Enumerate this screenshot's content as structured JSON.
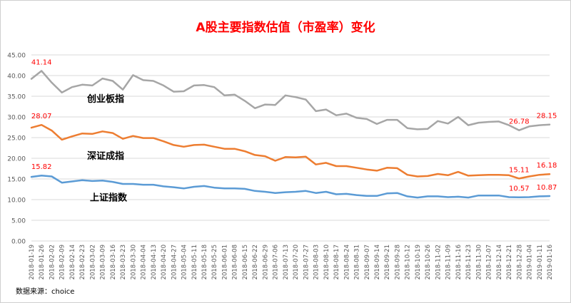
{
  "chart_data": {
    "type": "line",
    "title": "A股主要指数估值（市盈率）变化",
    "source": "数据来源：choice",
    "ylim": [
      0,
      45
    ],
    "yticks": [
      "0.00",
      "5.00",
      "10.00",
      "15.00",
      "20.00",
      "25.00",
      "30.00",
      "35.00",
      "40.00",
      "45.00"
    ],
    "grid": true,
    "categories": [
      "2018-01-19",
      "2018-01-26",
      "2018-02-02",
      "2018-02-09",
      "2018-02-14",
      "2018-02-23",
      "2018-03-02",
      "2018-03-09",
      "2018-03-16",
      "2018-03-23",
      "2018-03-30",
      "2018-04-04",
      "2018-04-13",
      "2018-04-20",
      "2018-04-27",
      "2018-05-04",
      "2018-05-11",
      "2018-05-18",
      "2018-05-25",
      "2018-06-01",
      "2018-06-08",
      "2018-06-15",
      "2018-06-22",
      "2018-06-29",
      "2018-07-06",
      "2018-07-13",
      "2018-07-20",
      "2018-07-27",
      "2018-08-03",
      "2018-08-10",
      "2018-08-17",
      "2018-08-24",
      "2018-08-31",
      "2018-09-07",
      "2018-09-14",
      "2018-09-21",
      "2018-09-28",
      "2018-10-12",
      "2018-10-19",
      "2018-10-26",
      "2018-11-02",
      "2018-11-09",
      "2018-11-16",
      "2018-11-23",
      "2018-11-30",
      "2018-12-07",
      "2018-12-14",
      "2018-12-21",
      "2018-12-28",
      "2019-01-04",
      "2019-01-11",
      "2019-01-16"
    ],
    "series": [
      {
        "name": "创业板指",
        "color": "#a6a6a6",
        "values": [
          39.2,
          41.14,
          38.3,
          35.9,
          37.2,
          37.8,
          37.6,
          39.3,
          38.7,
          36.6,
          40.1,
          38.9,
          38.7,
          37.6,
          36.1,
          36.2,
          37.6,
          37.7,
          37.2,
          35.2,
          35.4,
          33.9,
          32.1,
          33.0,
          32.9,
          35.2,
          34.8,
          34.2,
          31.4,
          31.8,
          30.4,
          30.8,
          29.8,
          29.5,
          28.3,
          29.3,
          29.3,
          27.3,
          27.0,
          27.1,
          29.0,
          28.4,
          30.0,
          28.0,
          28.6,
          28.8,
          28.9,
          28.0,
          26.78,
          27.7,
          28.0,
          28.15
        ],
        "labels": [
          {
            "index": 1,
            "text": "41.14"
          },
          {
            "index": 48,
            "text": "26.78"
          },
          {
            "index": 51,
            "text": "28.15"
          }
        ]
      },
      {
        "name": "深证成指",
        "color": "#ed7d31",
        "values": [
          27.4,
          28.07,
          26.7,
          24.5,
          25.3,
          26.0,
          25.9,
          26.5,
          26.1,
          24.7,
          25.4,
          24.9,
          24.9,
          24.1,
          23.2,
          22.8,
          23.2,
          23.3,
          22.8,
          22.3,
          22.3,
          21.7,
          20.8,
          20.5,
          19.4,
          20.3,
          20.2,
          20.4,
          18.5,
          18.9,
          18.1,
          18.1,
          17.7,
          17.3,
          17.0,
          17.7,
          17.6,
          16.0,
          15.6,
          15.7,
          16.2,
          15.9,
          16.7,
          15.8,
          15.9,
          16.0,
          16.0,
          15.9,
          15.11,
          15.6,
          16.0,
          16.18
        ],
        "labels": [
          {
            "index": 1,
            "text": "28.07"
          },
          {
            "index": 48,
            "text": "15.11"
          },
          {
            "index": 51,
            "text": "16.18"
          }
        ]
      },
      {
        "name": "上证指数",
        "color": "#5b9bd5",
        "values": [
          15.5,
          15.82,
          15.6,
          14.1,
          14.4,
          14.7,
          14.5,
          14.6,
          14.3,
          13.8,
          13.8,
          13.6,
          13.6,
          13.2,
          13.0,
          12.7,
          13.1,
          13.3,
          12.9,
          12.7,
          12.7,
          12.6,
          12.1,
          11.9,
          11.6,
          11.8,
          11.9,
          12.1,
          11.6,
          11.9,
          11.3,
          11.4,
          11.1,
          10.9,
          10.9,
          11.5,
          11.6,
          10.8,
          10.5,
          10.8,
          10.8,
          10.6,
          10.7,
          10.5,
          11.0,
          11.0,
          11.0,
          10.6,
          10.57,
          10.6,
          10.8,
          10.87
        ],
        "labels": [
          {
            "index": 1,
            "text": "15.82"
          },
          {
            "index": 48,
            "text": "10.57"
          },
          {
            "index": 51,
            "text": "10.87"
          }
        ]
      }
    ]
  }
}
